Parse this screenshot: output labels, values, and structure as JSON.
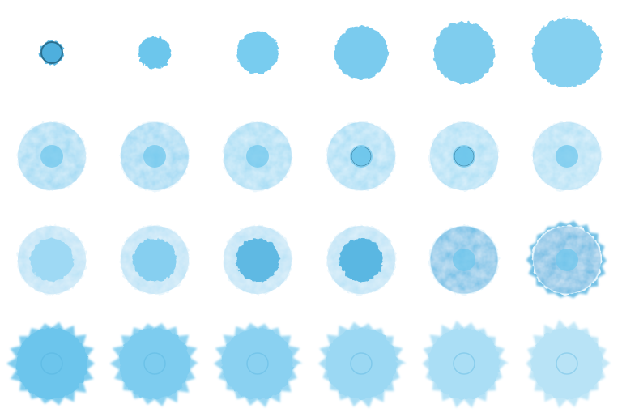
{
  "sheet": {
    "description_visible_text": "",
    "background": "#ffffff",
    "rows": 4,
    "columns": 6
  },
  "palette": {
    "light_blue": "#8fd3f2",
    "mid_blue": "#6cc6ec",
    "deep_blue": "#4eafdd",
    "outline_dark": "#2a6f8f",
    "pale_white": "#eaf6fc"
  },
  "frames": [
    {
      "stage": "seed",
      "fill": "#5fb9e3",
      "dark_core": true,
      "halo": 0,
      "spikes": 0,
      "size_level": 1
    },
    {
      "stage": "grow",
      "fill": "#6cc6ec",
      "dark_core": false,
      "halo": 0,
      "spikes": 0,
      "size_level": 2
    },
    {
      "stage": "grow",
      "fill": "#78ccef",
      "dark_core": false,
      "halo": 0,
      "spikes": 0,
      "size_level": 3
    },
    {
      "stage": "grow",
      "fill": "#7acbee",
      "dark_core": false,
      "halo": 0,
      "spikes": 0,
      "size_level": 4
    },
    {
      "stage": "grow",
      "fill": "#7fcdee",
      "dark_core": false,
      "halo": 0,
      "spikes": 0,
      "size_level": 5
    },
    {
      "stage": "grow",
      "fill": "#85d0f0",
      "dark_core": false,
      "halo": 0,
      "spikes": 0,
      "size_level": 6
    },
    {
      "stage": "fade",
      "fill": "#9ad8f3",
      "dark_core": false,
      "halo": 1,
      "spikes": 0,
      "size_level": 6
    },
    {
      "stage": "fade",
      "fill": "#98d7f3",
      "dark_core": false,
      "halo": 1,
      "spikes": 0,
      "size_level": 6
    },
    {
      "stage": "fade",
      "fill": "#a0dbf4",
      "dark_core": false,
      "halo": 1,
      "spikes": 0,
      "size_level": 6
    },
    {
      "stage": "fade",
      "fill": "#a5ddf5",
      "dark_core": true,
      "halo": 1,
      "spikes": 0,
      "size_level": 6
    },
    {
      "stage": "fade",
      "fill": "#a8def5",
      "dark_core": true,
      "halo": 1,
      "spikes": 0,
      "size_level": 6
    },
    {
      "stage": "fade",
      "fill": "#acdff5",
      "dark_core": false,
      "halo": 1,
      "spikes": 0,
      "size_level": 6
    },
    {
      "stage": "core",
      "fill": "#9ed9f4",
      "dark_core": false,
      "halo": 2,
      "spikes": 0,
      "size_level": 6
    },
    {
      "stage": "core",
      "fill": "#86cff0",
      "dark_core": false,
      "halo": 2,
      "spikes": 0,
      "size_level": 6
    },
    {
      "stage": "core",
      "fill": "#5fb9e3",
      "dark_core": false,
      "halo": 2,
      "spikes": 0,
      "size_level": 6
    },
    {
      "stage": "core",
      "fill": "#5ab7e2",
      "dark_core": false,
      "halo": 2,
      "spikes": 0,
      "size_level": 6
    },
    {
      "stage": "core",
      "fill": "#62bce5",
      "dark_core": false,
      "halo": 1,
      "spikes": 0,
      "size_level": 6
    },
    {
      "stage": "core",
      "fill": "#5eb8e2",
      "dark_core": false,
      "halo": 1,
      "spikes": 1,
      "size_level": 6
    },
    {
      "stage": "burst",
      "fill": "#6cc5ec",
      "dark_core": false,
      "halo": 0,
      "spikes": 2,
      "size_level": 7
    },
    {
      "stage": "burst",
      "fill": "#7dccef",
      "dark_core": false,
      "halo": 0,
      "spikes": 2,
      "size_level": 7
    },
    {
      "stage": "burst",
      "fill": "#8ad1f1",
      "dark_core": false,
      "halo": 0,
      "spikes": 2,
      "size_level": 7
    },
    {
      "stage": "burst",
      "fill": "#9bd8f3",
      "dark_core": false,
      "halo": 0,
      "spikes": 2,
      "size_level": 7
    },
    {
      "stage": "burst",
      "fill": "#aadef5",
      "dark_core": false,
      "halo": 0,
      "spikes": 2,
      "size_level": 7
    },
    {
      "stage": "burst",
      "fill": "#b8e3f6",
      "dark_core": false,
      "halo": 0,
      "spikes": 2,
      "size_level": 7
    }
  ]
}
